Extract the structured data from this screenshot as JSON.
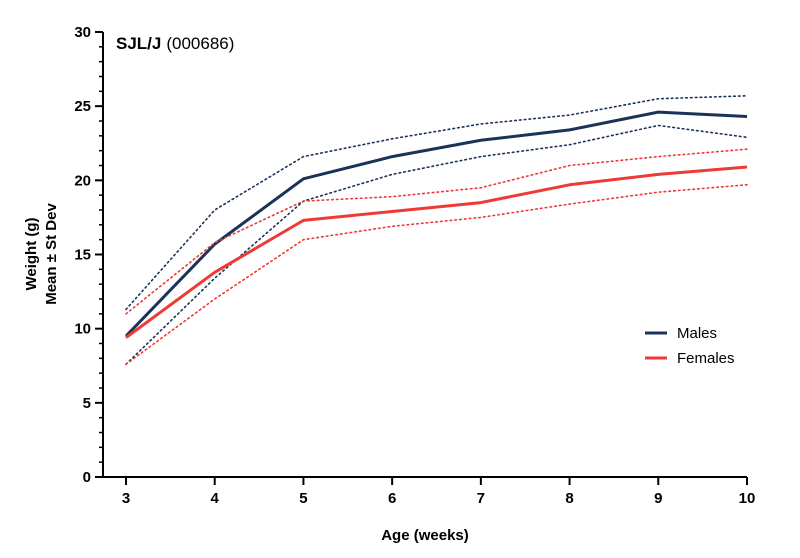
{
  "chart_data": {
    "type": "line",
    "title": "SJL/J",
    "title_suffix": "(000686)",
    "xlabel": "Age (weeks)",
    "ylabel_line1": "Weight (g)",
    "ylabel_line2": "Mean ± St Dev",
    "x": [
      3,
      4,
      5,
      6,
      7,
      8,
      9,
      10
    ],
    "xlim": [
      3,
      10
    ],
    "ylim": [
      0,
      30
    ],
    "yticks": [
      0,
      5,
      10,
      15,
      20,
      25,
      30
    ],
    "xticks": [
      3,
      4,
      5,
      6,
      7,
      8,
      9,
      10
    ],
    "grid": false,
    "legend_position": "right",
    "series": [
      {
        "name": "Males",
        "color": "#1b3359",
        "mean": [
          9.5,
          15.7,
          20.1,
          21.6,
          22.7,
          23.4,
          24.6,
          24.3
        ],
        "upper": [
          11.3,
          18.0,
          21.6,
          22.8,
          23.8,
          24.4,
          25.5,
          25.7
        ],
        "lower": [
          7.6,
          13.4,
          18.6,
          20.4,
          21.6,
          22.4,
          23.7,
          22.9
        ]
      },
      {
        "name": "Females",
        "color": "#ee3a35",
        "mean": [
          9.4,
          13.8,
          17.3,
          17.9,
          18.5,
          19.7,
          20.4,
          20.9
        ],
        "upper": [
          11.0,
          15.8,
          18.6,
          18.9,
          19.5,
          21.0,
          21.6,
          22.1
        ],
        "lower": [
          7.6,
          12.0,
          16.0,
          16.9,
          17.5,
          18.4,
          19.2,
          19.7
        ]
      }
    ]
  }
}
